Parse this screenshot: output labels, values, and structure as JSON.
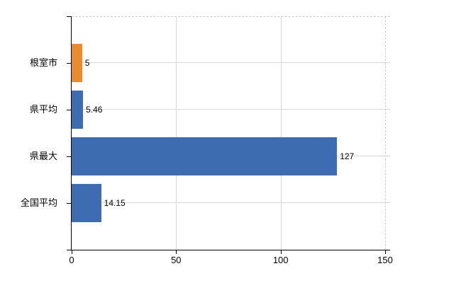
{
  "chart_data": {
    "type": "bar",
    "orientation": "horizontal",
    "categories": [
      "根室市",
      "県平均",
      "県最大",
      "全国平均"
    ],
    "values": [
      5,
      5.46,
      127,
      14.15
    ],
    "value_labels": [
      "5",
      "5.46",
      "127",
      "14.15"
    ],
    "point_colors": [
      "#ea8c2c",
      "#3e6cb0",
      "#3e6cb0",
      "#3e6cb0"
    ],
    "xlim": [
      0,
      150
    ],
    "x_ticks": [
      0,
      50,
      100,
      150
    ],
    "x_tick_labels": [
      "0",
      "50",
      "100",
      "150"
    ],
    "grid": "on",
    "legend": "none",
    "title": ""
  },
  "colors": {
    "bar_highlight": "#ea8c2c",
    "bar_default": "#3e6cb0",
    "gridline_solid": "#d6d6d6",
    "border_dashed": "#c9c9c9",
    "axis": "#000000",
    "text": "#000000",
    "background": "#ffffff"
  }
}
